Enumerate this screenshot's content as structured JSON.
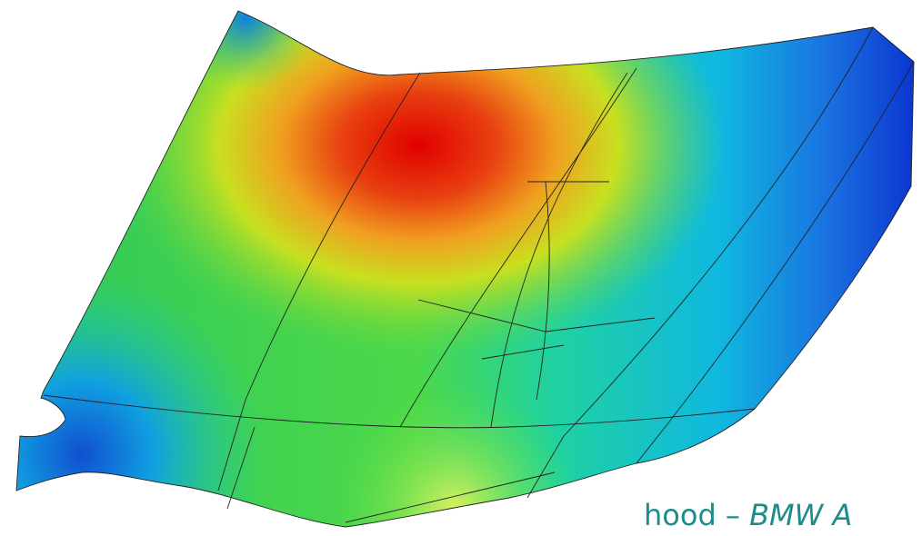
{
  "caption": {
    "prefix": "hood – ",
    "source": "BMW A"
  }
}
